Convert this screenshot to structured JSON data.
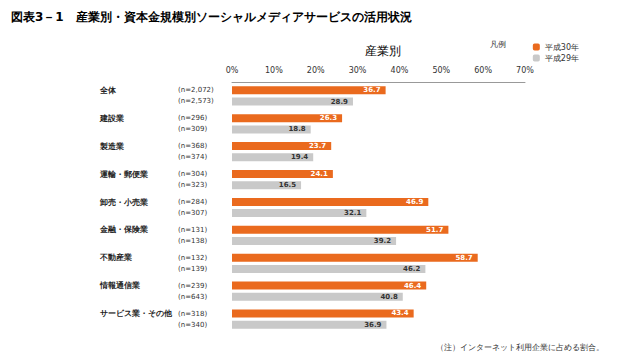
{
  "chart_data": {
    "type": "bar",
    "orientation": "horizontal",
    "title": "図表3－1　産業別・資本金規模別ソーシャルメディアサービスの活用状況",
    "subtitle": "産業別",
    "legend_title": "凡例",
    "note": "（注）インターネット利用企業に占める割合。",
    "categories": [
      "全体",
      "建設業",
      "製造業",
      "運輸・郵便業",
      "卸売・小売業",
      "金融・保険業",
      "不動産業",
      "情報通信業",
      "サービス業・その他"
    ],
    "series": [
      {
        "name": "平成30年",
        "color": "#ea6a1e",
        "values": [
          36.7,
          26.3,
          23.7,
          24.1,
          46.9,
          51.7,
          58.7,
          46.4,
          43.4
        ],
        "n_labels": [
          "(n=2,072)",
          "(n=296)",
          "(n=368)",
          "(n=304)",
          "(n=284)",
          "(n=131)",
          "(n=132)",
          "(n=239)",
          "(n=318)"
        ]
      },
      {
        "name": "平成29年",
        "color": "#c9c9c9",
        "values": [
          28.9,
          18.8,
          19.4,
          16.5,
          32.1,
          39.2,
          46.2,
          40.8,
          36.9
        ],
        "n_labels": [
          "(n=2,573)",
          "(n=309)",
          "(n=374)",
          "(n=323)",
          "(n=307)",
          "(n=138)",
          "(n=139)",
          "(n=643)",
          "(n=340)"
        ]
      }
    ],
    "xlim": [
      0,
      70
    ],
    "xticks": [
      {
        "value": 0,
        "label": "0%"
      },
      {
        "value": 10,
        "label": "10%"
      },
      {
        "value": 20,
        "label": "20%"
      },
      {
        "value": 30,
        "label": "30%"
      },
      {
        "value": 40,
        "label": "40%"
      },
      {
        "value": 50,
        "label": "50%"
      },
      {
        "value": 60,
        "label": "60%"
      },
      {
        "value": 70,
        "label": "70%"
      }
    ],
    "grid": false,
    "legend": "top-right",
    "data_labels": true
  }
}
